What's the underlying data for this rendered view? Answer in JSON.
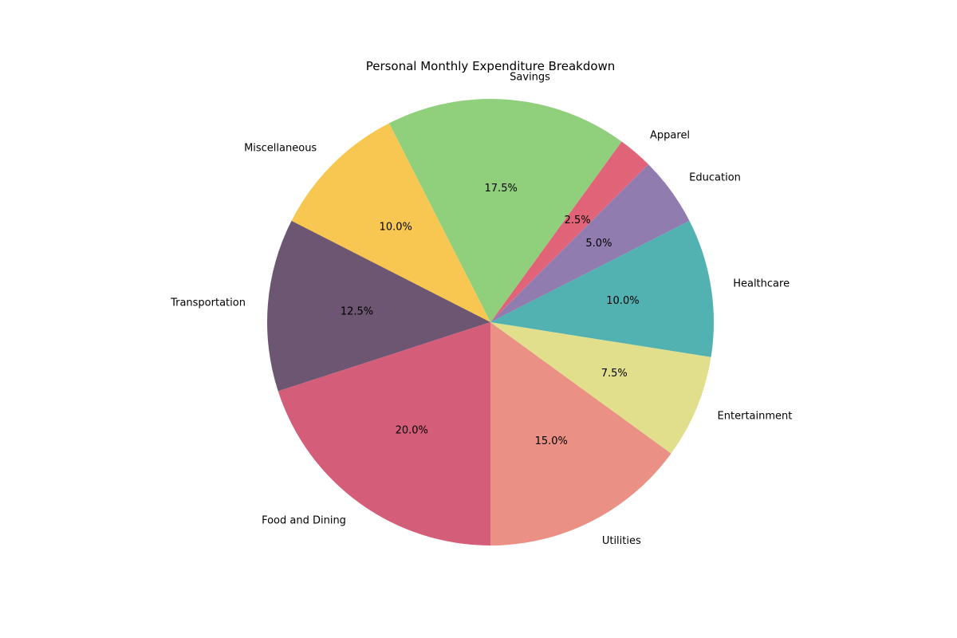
{
  "chart_data": {
    "type": "pie",
    "title": "Personal Monthly Expenditure Breakdown",
    "start_angle_deg": 45,
    "direction": "counterclockwise",
    "slices": [
      {
        "label": "Apparel",
        "value": 2.5,
        "pct_label": "2.5%",
        "color": "#e06377"
      },
      {
        "label": "Savings",
        "value": 17.5,
        "pct_label": "17.5%",
        "color": "#90d07c"
      },
      {
        "label": "Miscellaneous",
        "value": 10.0,
        "pct_label": "10.0%",
        "color": "#f7c752"
      },
      {
        "label": "Transportation",
        "value": 12.5,
        "pct_label": "12.5%",
        "color": "#6c5671"
      },
      {
        "label": "Food and Dining",
        "value": 20.0,
        "pct_label": "20.0%",
        "color": "#d45d79"
      },
      {
        "label": "Utilities",
        "value": 15.0,
        "pct_label": "15.0%",
        "color": "#ea9085"
      },
      {
        "label": "Entertainment",
        "value": 7.5,
        "pct_label": "7.5%",
        "color": "#e2df8c"
      },
      {
        "label": "Healthcare",
        "value": 10.0,
        "pct_label": "10.0%",
        "color": "#52b2b1"
      },
      {
        "label": "Education",
        "value": 5.0,
        "pct_label": "5.0%",
        "color": "#917caf"
      }
    ]
  }
}
